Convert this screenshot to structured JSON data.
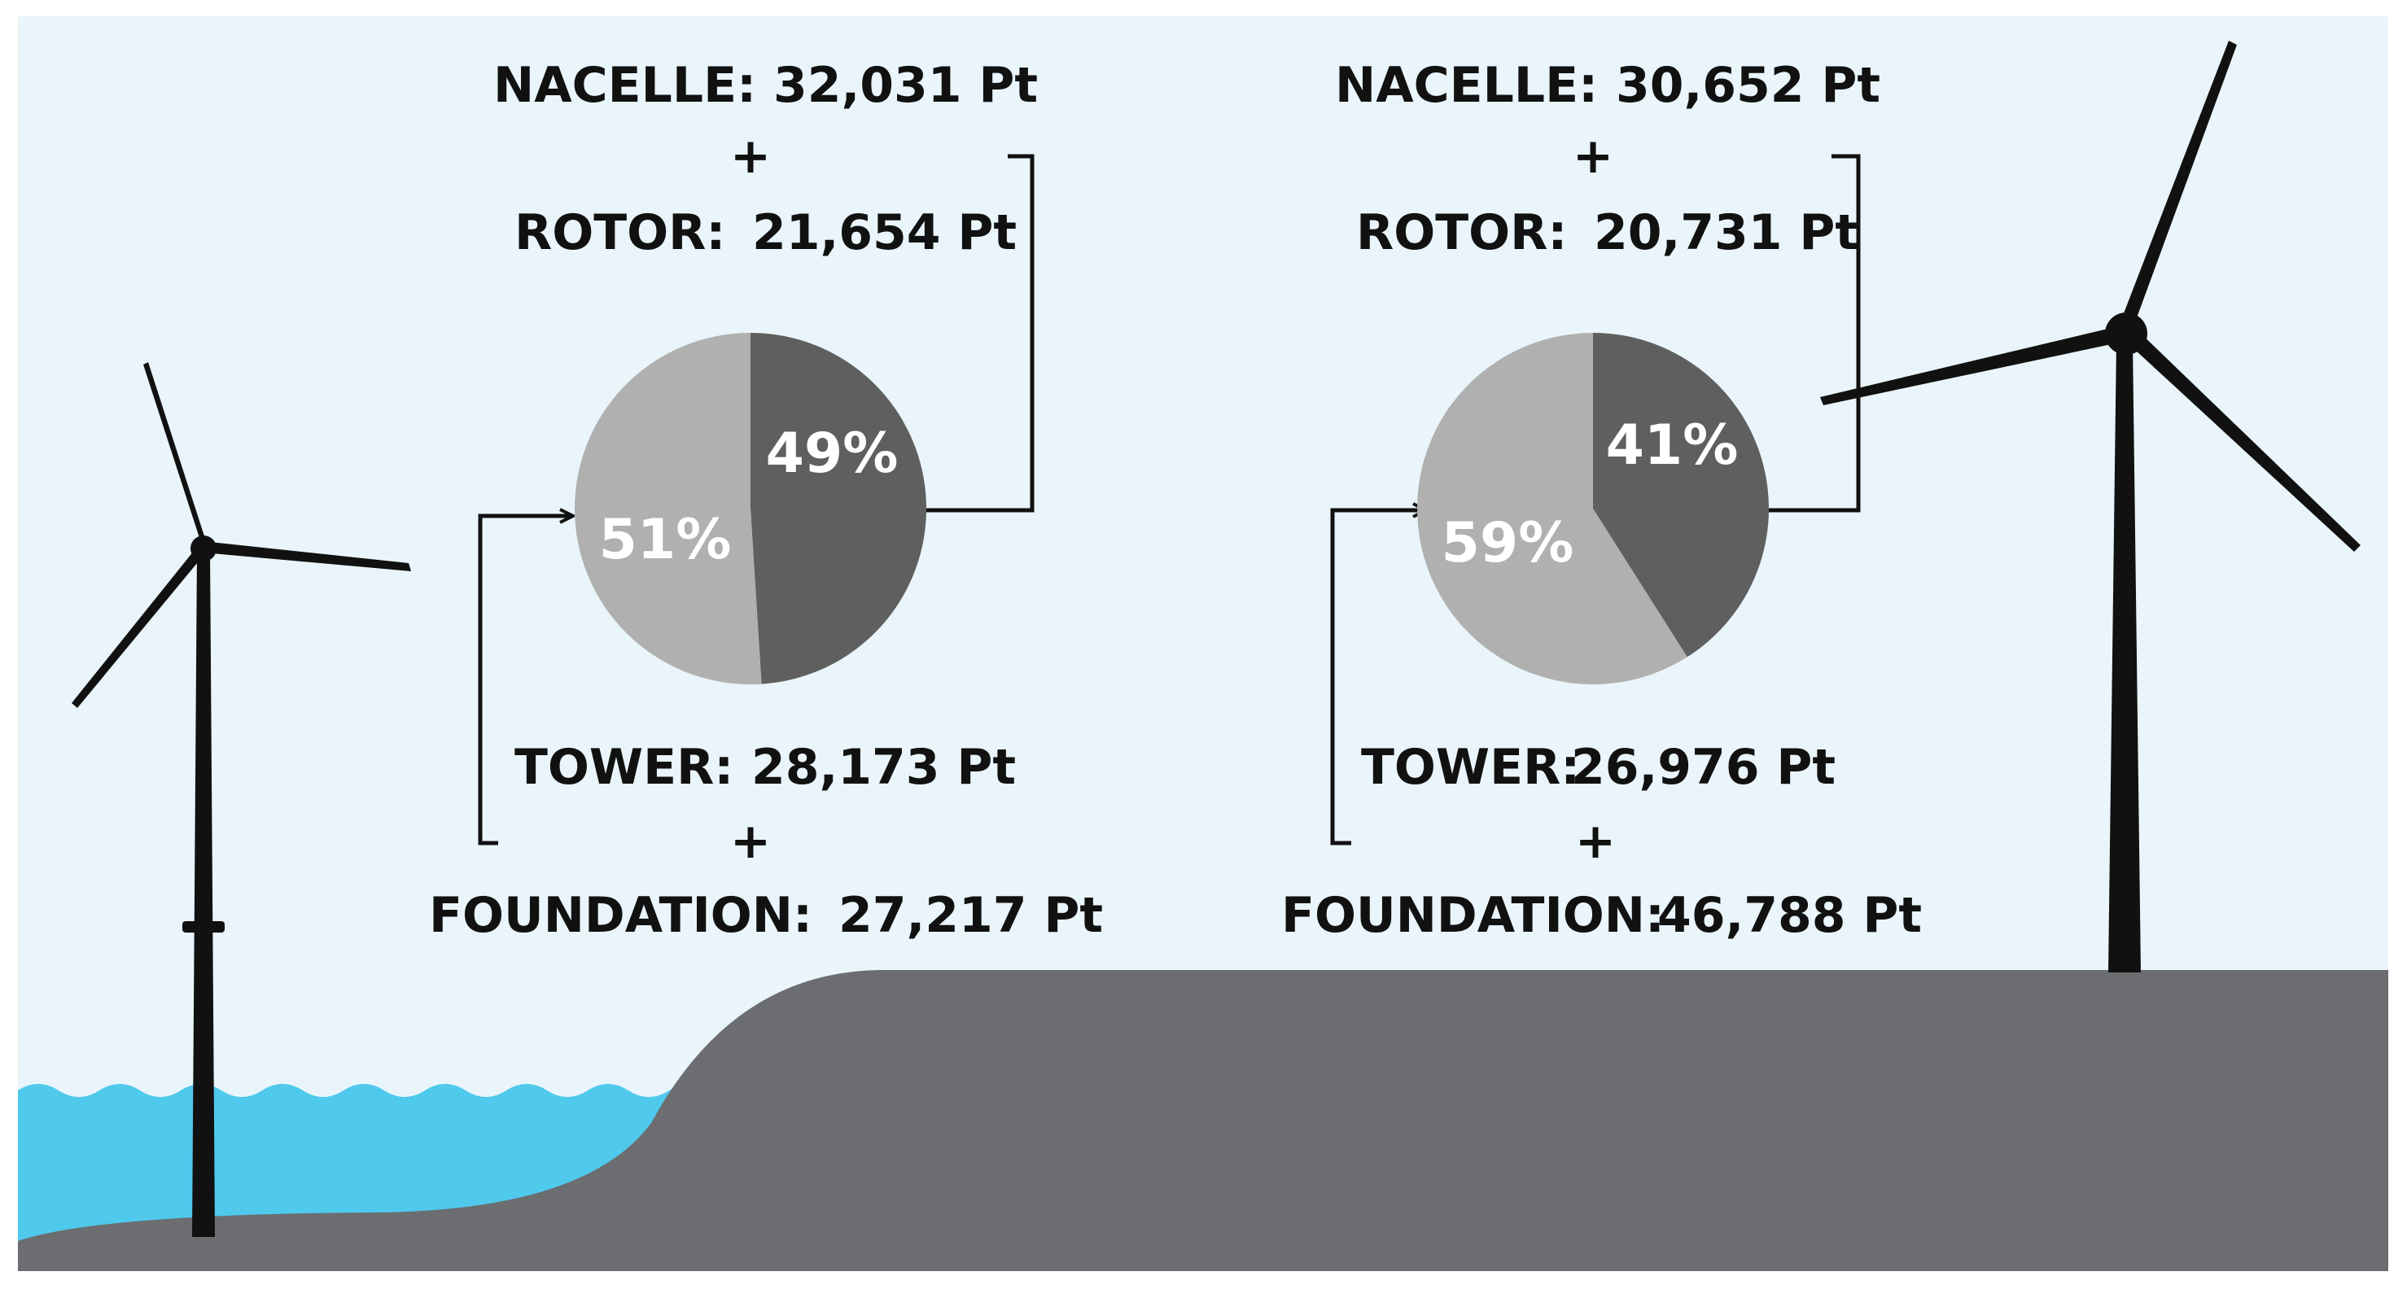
{
  "colors": {
    "sky": "#e9f5fb",
    "water": "#4fc9ec",
    "land": "#6b6d70",
    "turbine": "#111111",
    "dark_slice": "#5f5f5f",
    "light_slice": "#b0b0b0"
  },
  "icons": [
    "offshore-wind-turbine-icon",
    "onshore-wind-turbine-icon"
  ],
  "plus_sign": "+",
  "chart_data": [
    {
      "type": "pie",
      "slices": [
        {
          "label": "49%",
          "value": 49,
          "color": "#5f5f5f"
        },
        {
          "label": "51%",
          "value": 51,
          "color": "#b0b0b0"
        }
      ],
      "top": {
        "nacelle_label": "NACELLE:",
        "nacelle_value": "32,031 Pt",
        "rotor_label": "ROTOR:",
        "rotor_value": "21,654 Pt"
      },
      "bottom": {
        "tower_label": "TOWER:",
        "tower_value": "28,173 Pt",
        "foundation_label": "FOUNDATION:",
        "foundation_value": "27,217 Pt"
      }
    },
    {
      "type": "pie",
      "slices": [
        {
          "label": "41%",
          "value": 41,
          "color": "#5f5f5f"
        },
        {
          "label": "59%",
          "value": 59,
          "color": "#b0b0b0"
        }
      ],
      "top": {
        "nacelle_label": "NACELLE:",
        "nacelle_value": "30,652 Pt",
        "rotor_label": "ROTOR:",
        "rotor_value": "20,731 Pt"
      },
      "bottom": {
        "tower_label": "TOWER:",
        "tower_value": "26,976 Pt",
        "foundation_label": "FOUNDATION:",
        "foundation_value": "46,788 Pt"
      }
    }
  ]
}
